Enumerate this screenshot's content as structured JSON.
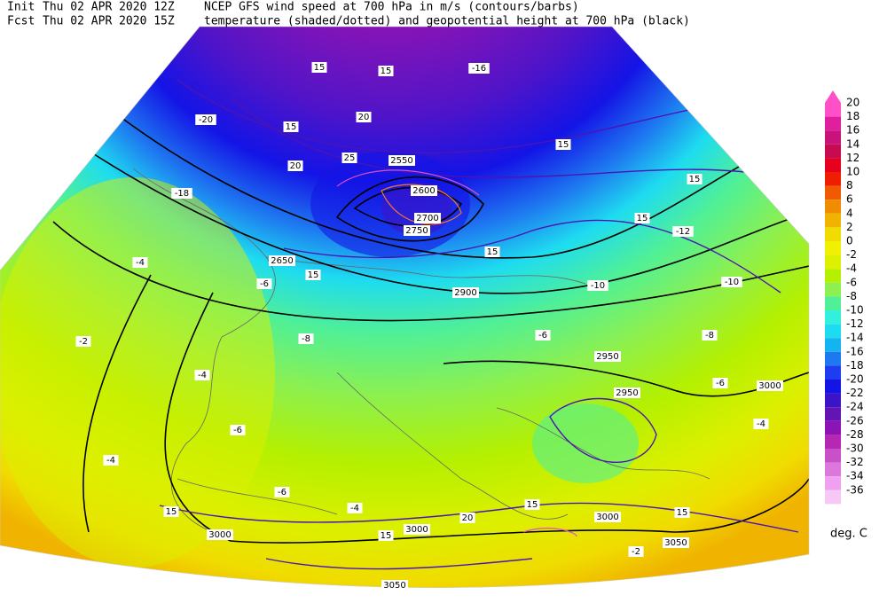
{
  "header": {
    "init_label": "Init",
    "init_time": "Thu 02 APR 2020 12Z",
    "fcst_label": "Fcst",
    "fcst_time": "Thu 02 APR 2020 15Z",
    "line1": "NCEP GFS wind speed at 700 hPa in m/s (contours/barbs)",
    "line2": "temperature (shaded/dotted) and geopotential height at 700 hPa (black)"
  },
  "colorbar": {
    "unit": "deg. C",
    "ticks": [
      20,
      18,
      16,
      14,
      12,
      10,
      8,
      6,
      4,
      2,
      0,
      -2,
      -4,
      -6,
      -8,
      -10,
      -12,
      -14,
      -16,
      -18,
      -20,
      -22,
      -24,
      -26,
      -28,
      -30,
      -32,
      -34,
      -36
    ],
    "colors": [
      "#ff50c8",
      "#e01e9e",
      "#c8147a",
      "#c80a50",
      "#e6001e",
      "#f01e00",
      "#f05a00",
      "#f08c00",
      "#f0b400",
      "#f0dc00",
      "#f0f000",
      "#dcf000",
      "#b4f000",
      "#8cf050",
      "#50f096",
      "#32f0dc",
      "#1edcf0",
      "#14b4f0",
      "#1e78f0",
      "#1e3cf0",
      "#1414e6",
      "#3c14c8",
      "#6414b4",
      "#8c14b4",
      "#b428b4",
      "#c850c8",
      "#dc78dc",
      "#f0a0f0",
      "#f5c8f5"
    ]
  },
  "map_labels": [
    "2900",
    "2950",
    "2950",
    "3000",
    "3000",
    "3000",
    "3050",
    "3050",
    "3000",
    "2650",
    "2700",
    "2750",
    "2600",
    "2550",
    "15",
    "15",
    "15",
    "20",
    "20",
    "25",
    "15",
    "15",
    "15",
    "15",
    "15",
    "15",
    "15",
    "15",
    "15",
    "20",
    "-20",
    "-18",
    "-16",
    "-10",
    "-10",
    "-12",
    "-8",
    "-8",
    "-6",
    "-6",
    "-4",
    "-4",
    "-4",
    "-4",
    "-2",
    "-2",
    "-6",
    "-6",
    "-6",
    "-4"
  ]
}
